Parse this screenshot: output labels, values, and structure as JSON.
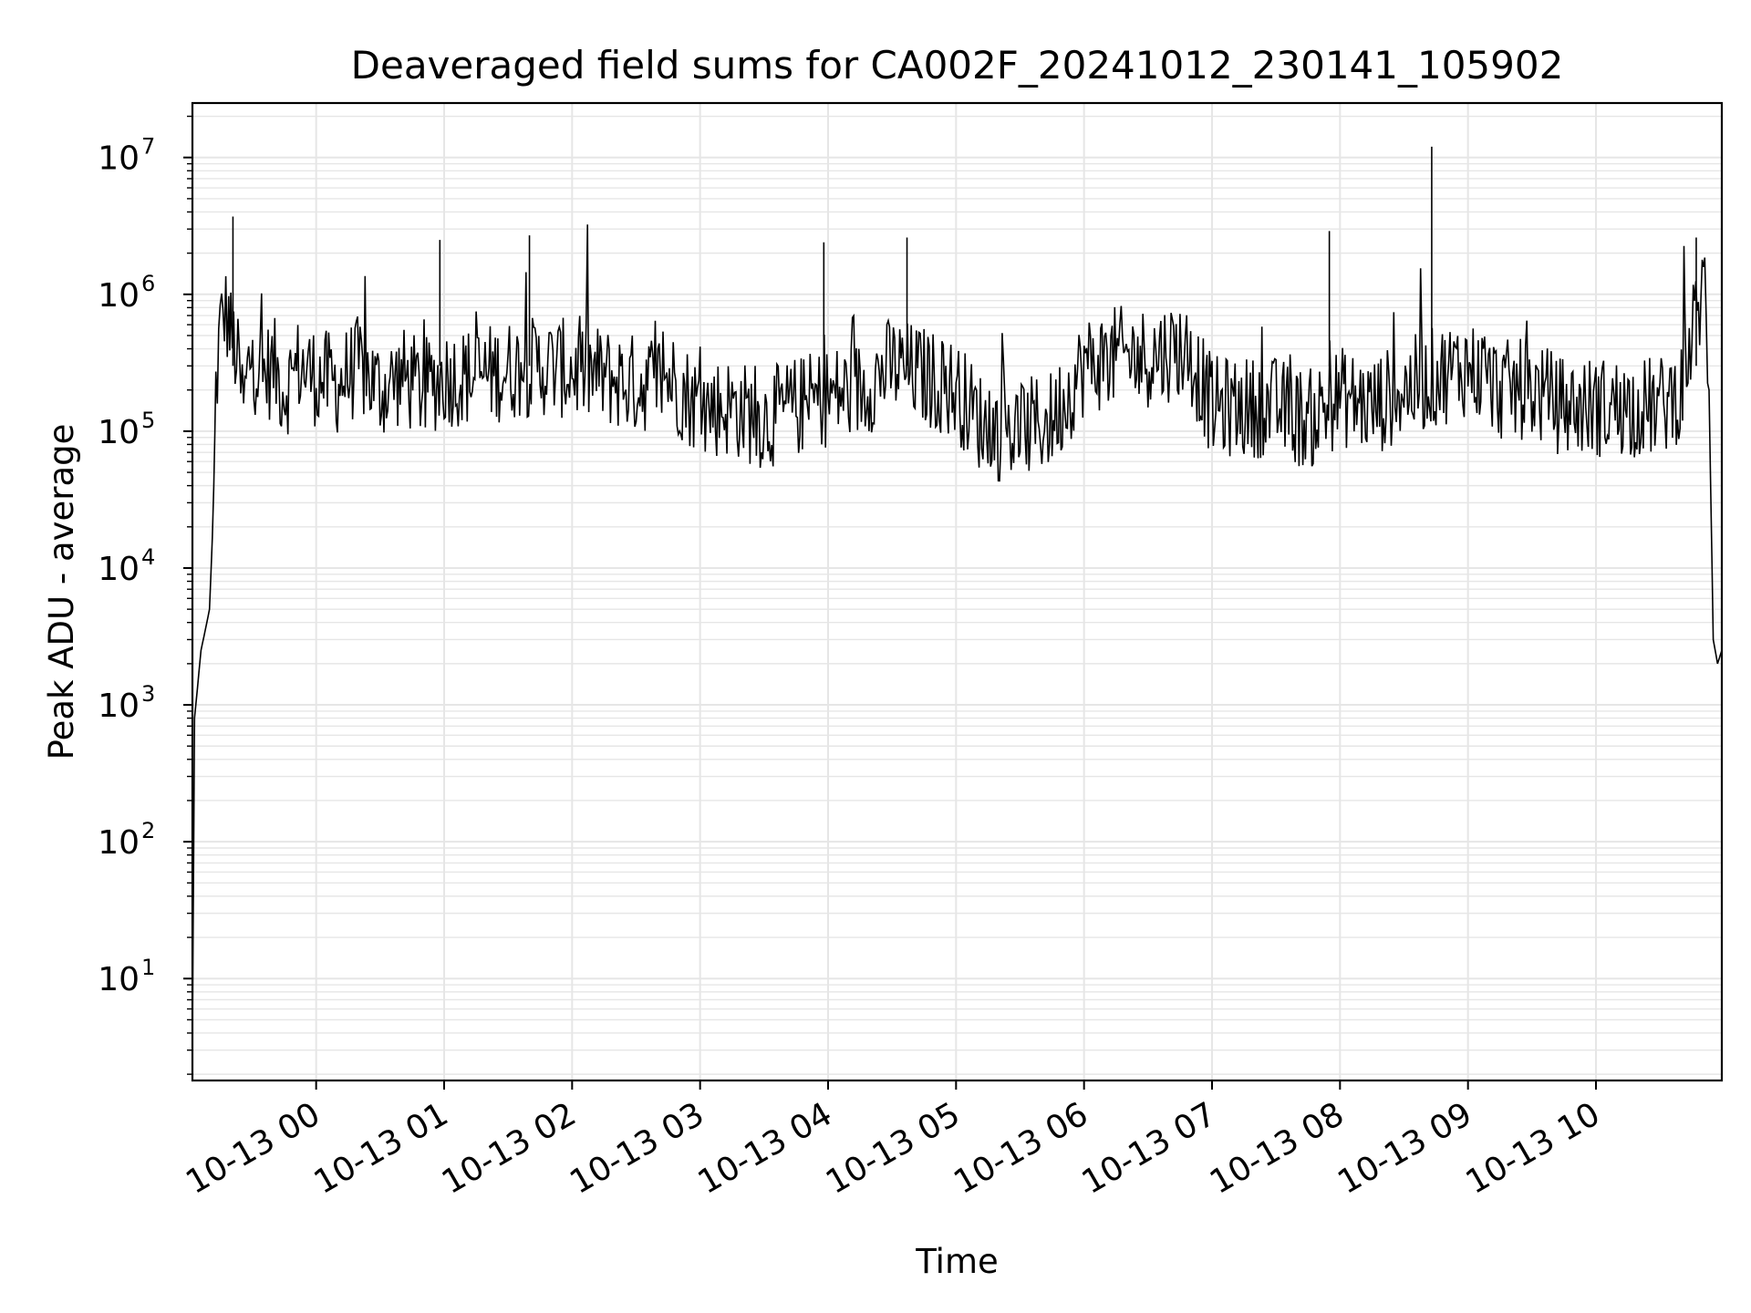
{
  "chart_data": {
    "type": "line",
    "title": "Deaveraged field sums for CA002F_20241012_230141_105902",
    "xlabel": "Time",
    "ylabel": "Peak ADU - average",
    "y_scale": "log",
    "ylim": [
      1.8,
      25000000
    ],
    "xlim": [
      "2024-10-12 23:02",
      "2024-10-13 10:59"
    ],
    "grid": true,
    "line_color": "#000000",
    "grid_color": "#e6e6e6",
    "x_ticks": [
      {
        "value": "2024-10-13 00:00",
        "label": "10-13 00"
      },
      {
        "value": "2024-10-13 01:00",
        "label": "10-13 01"
      },
      {
        "value": "2024-10-13 02:00",
        "label": "10-13 02"
      },
      {
        "value": "2024-10-13 03:00",
        "label": "10-13 03"
      },
      {
        "value": "2024-10-13 04:00",
        "label": "10-13 04"
      },
      {
        "value": "2024-10-13 05:00",
        "label": "10-13 05"
      },
      {
        "value": "2024-10-13 06:00",
        "label": "10-13 06"
      },
      {
        "value": "2024-10-13 07:00",
        "label": "10-13 07"
      },
      {
        "value": "2024-10-13 08:00",
        "label": "10-13 08"
      },
      {
        "value": "2024-10-13 09:00",
        "label": "10-13 09"
      },
      {
        "value": "2024-10-13 10:00",
        "label": "10-13 10"
      }
    ],
    "y_ticks": [
      {
        "value": 10,
        "base": "10",
        "exp": "1"
      },
      {
        "value": 100,
        "base": "10",
        "exp": "2"
      },
      {
        "value": 1000,
        "base": "10",
        "exp": "3"
      },
      {
        "value": 10000,
        "base": "10",
        "exp": "4"
      },
      {
        "value": 100000,
        "base": "10",
        "exp": "5"
      },
      {
        "value": 1000000,
        "base": "10",
        "exp": "6"
      },
      {
        "value": 10000000,
        "base": "10",
        "exp": "7"
      }
    ],
    "series": [
      {
        "x": [
          "2024-10-12 23:02",
          "2024-10-12 23:03",
          "2024-10-12 23:05",
          "2024-10-12 23:06",
          "2024-10-12 23:08",
          "2024-10-12 23:10",
          "2024-10-12 23:12",
          "2024-10-12 23:13",
          "2024-10-12 23:15",
          "2024-10-12 23:17",
          "2024-10-12 23:19",
          "2024-10-12 23:20",
          "2024-10-12 23:22",
          "2024-10-12 23:24",
          "2024-10-12 23:26",
          "2024-10-12 23:29",
          "2024-10-12 23:32",
          "2024-10-12 23:35",
          "2024-10-12 23:40",
          "2024-10-12 23:45",
          "2024-10-12 23:52",
          "2024-10-13 00:00",
          "2024-10-13 00:10",
          "2024-10-13 00:20",
          "2024-10-13 00:30",
          "2024-10-13 00:40",
          "2024-10-13 00:50",
          "2024-10-13 01:00",
          "2024-10-13 01:15",
          "2024-10-13 01:30",
          "2024-10-13 01:45",
          "2024-10-13 02:00",
          "2024-10-13 02:15",
          "2024-10-13 02:30",
          "2024-10-13 02:45",
          "2024-10-13 03:00",
          "2024-10-13 03:15",
          "2024-10-13 03:30",
          "2024-10-13 03:45",
          "2024-10-13 04:00",
          "2024-10-13 04:15",
          "2024-10-13 04:30",
          "2024-10-13 04:45",
          "2024-10-13 05:00",
          "2024-10-13 05:15",
          "2024-10-13 05:30",
          "2024-10-13 05:45",
          "2024-10-13 06:00",
          "2024-10-13 06:15",
          "2024-10-13 06:30",
          "2024-10-13 06:45",
          "2024-10-13 06:50",
          "2024-10-13 07:00",
          "2024-10-13 07:15",
          "2024-10-13 07:30",
          "2024-10-13 07:45",
          "2024-10-13 08:00",
          "2024-10-13 08:15",
          "2024-10-13 08:30",
          "2024-10-13 08:45",
          "2024-10-13 09:00",
          "2024-10-13 09:15",
          "2024-10-13 09:30",
          "2024-10-13 09:45",
          "2024-10-13 10:00",
          "2024-10-13 10:15",
          "2024-10-13 10:30",
          "2024-10-13 10:40",
          "2024-10-13 10:45",
          "2024-10-13 10:48",
          "2024-10-13 10:51",
          "2024-10-13 10:53",
          "2024-10-13 10:55",
          "2024-10-13 10:57",
          "2024-10-13 10:59"
        ],
        "y": [
          4,
          800,
          1700,
          2500,
          3500,
          5000,
          30000,
          200000,
          550000,
          750000,
          650000,
          500000,
          400000,
          250000,
          150000,
          350000,
          300000,
          250000,
          300000,
          200000,
          300000,
          250000,
          220000,
          300000,
          200000,
          250000,
          200000,
          250000,
          250000,
          280000,
          300000,
          280000,
          250000,
          220000,
          250000,
          150000,
          150000,
          120000,
          150000,
          180000,
          200000,
          300000,
          250000,
          200000,
          100000,
          100000,
          120000,
          300000,
          350000,
          350000,
          400000,
          350000,
          150000,
          150000,
          150000,
          120000,
          180000,
          150000,
          200000,
          250000,
          300000,
          200000,
          200000,
          150000,
          150000,
          150000,
          150000,
          200000,
          500000,
          800000,
          1200000,
          200000,
          3000,
          2000,
          2500
        ],
        "spikes": [
          {
            "x": "2024-10-12 23:21",
            "y": 3700000
          },
          {
            "x": "2024-10-13 00:58",
            "y": 2500000
          },
          {
            "x": "2024-10-13 01:40",
            "y": 2700000
          },
          {
            "x": "2024-10-13 03:58",
            "y": 2400000
          },
          {
            "x": "2024-10-13 04:37",
            "y": 2600000
          },
          {
            "x": "2024-10-13 07:55",
            "y": 2900000
          },
          {
            "x": "2024-10-13 08:43",
            "y": 12000000
          },
          {
            "x": "2024-10-13 10:47",
            "y": 2600000
          }
        ]
      }
    ]
  }
}
